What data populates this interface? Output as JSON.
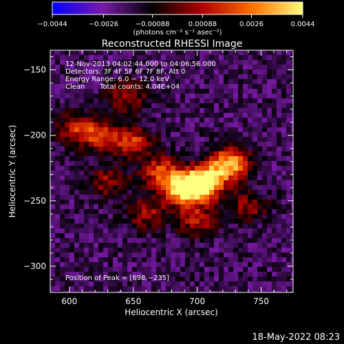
{
  "chart_data": {
    "type": "heatmap",
    "title": "Reconstructed RHESSI Image",
    "xlabel": "Heliocentric X (arcsec)",
    "ylabel": "Heliocentric Y (arcsec)",
    "xlim": [
      585,
      775
    ],
    "ylim": [
      -320,
      -135
    ],
    "x_ticks": [
      600,
      650,
      700,
      750
    ],
    "y_ticks": [
      -150,
      -200,
      -250,
      -300
    ],
    "x_tick_labels": [
      "600",
      "650",
      "700",
      "750"
    ],
    "y_tick_labels": [
      "−150",
      "−200",
      "−250",
      "−300"
    ],
    "colorbar": {
      "range": [
        -0.0044,
        0.0044
      ],
      "ticks": [
        -0.0044,
        -0.0026,
        -0.00088,
        0.00088,
        0.0026,
        0.0044
      ],
      "tick_labels": [
        "−0.0044",
        "−0.0026",
        "−0.00088",
        "0.00088",
        "0.0026",
        "0.0044"
      ],
      "units_label": "(photons cm⁻² s⁻¹ asec⁻²)",
      "colors": [
        "#0000ff",
        "#7a1aa8",
        "#000000",
        "#b00000",
        "#ff7000",
        "#ffff80"
      ]
    },
    "annotations": {
      "time_range": "12‑Nov‑2013 04:02:44.000 to 04:06:56.000",
      "detectors": "Detectors: 3F 4F 5F 6F 7F 8F, Att 0",
      "energy": "Energy Range: 6.0 − 12.0 keV",
      "clean_label": "Clean",
      "total_counts": "Total counts: 4.04E+04",
      "peak": "Position of Peak = [698,−235]"
    },
    "peak_position": [
      698,
      -235
    ],
    "emission_regions": [
      {
        "x": 705,
        "y": -236,
        "value": 0.0044
      },
      {
        "x": 725,
        "y": -222,
        "value": 0.0036
      },
      {
        "x": 690,
        "y": -242,
        "value": 0.004
      },
      {
        "x": 672,
        "y": -228,
        "value": 0.0018
      },
      {
        "x": 650,
        "y": -205,
        "value": 0.0014
      },
      {
        "x": 625,
        "y": -200,
        "value": 0.0012
      },
      {
        "x": 605,
        "y": -195,
        "value": 0.001
      },
      {
        "x": 645,
        "y": -170,
        "value": 0.0008
      },
      {
        "x": 700,
        "y": -265,
        "value": 0.0009
      },
      {
        "x": 740,
        "y": -255,
        "value": 0.0006
      },
      {
        "x": 660,
        "y": -260,
        "value": 0.0007
      },
      {
        "x": 630,
        "y": -235,
        "value": 0.0005
      }
    ]
  },
  "footer": {
    "date": "18‑May‑2022 08:23"
  }
}
